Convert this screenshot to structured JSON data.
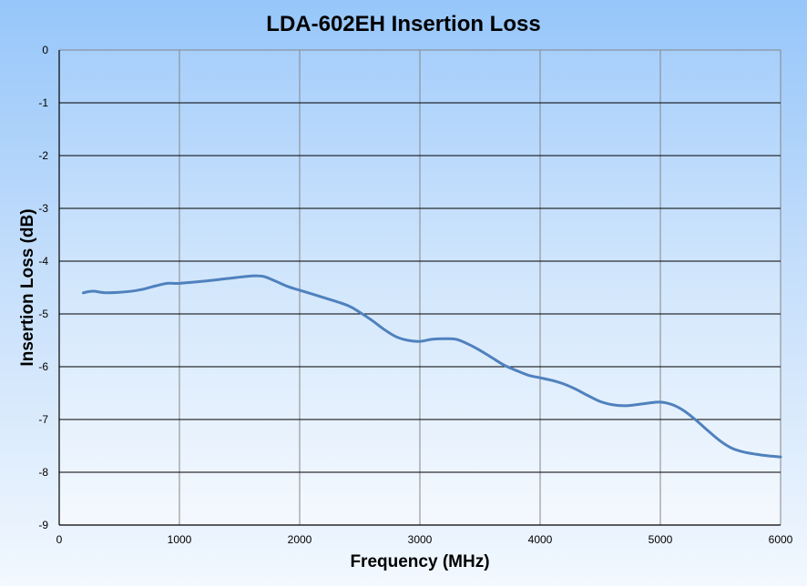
{
  "chart_data": {
    "type": "line",
    "title": "LDA-602EH Insertion Loss",
    "xlabel": "Frequency (MHz)",
    "ylabel": "Insertion Loss (dB)",
    "xlim": [
      0,
      6000
    ],
    "ylim": [
      -9,
      0
    ],
    "xticks": [
      0,
      1000,
      2000,
      3000,
      4000,
      5000,
      6000
    ],
    "yticks": [
      0,
      -1,
      -2,
      -3,
      -4,
      -5,
      -6,
      -7,
      -8,
      -9
    ],
    "grid": true,
    "legend": "none",
    "series": [
      {
        "name": "Insertion Loss",
        "color": "#4f81bd",
        "x": [
          200,
          280,
          400,
          600,
          700,
          800,
          900,
          1000,
          1200,
          1400,
          1600,
          1700,
          1800,
          1900,
          2000,
          2200,
          2400,
          2500,
          2600,
          2700,
          2800,
          2900,
          3000,
          3100,
          3200,
          3300,
          3400,
          3500,
          3600,
          3700,
          3800,
          3900,
          4000,
          4100,
          4200,
          4300,
          4400,
          4500,
          4600,
          4700,
          4800,
          4900,
          5000,
          5100,
          5200,
          5300,
          5400,
          5500,
          5600,
          5700,
          5800,
          5900,
          6000
        ],
        "y": [
          -4.6,
          -4.57,
          -4.6,
          -4.57,
          -4.53,
          -4.47,
          -4.42,
          -4.42,
          -4.38,
          -4.33,
          -4.28,
          -4.29,
          -4.38,
          -4.48,
          -4.55,
          -4.69,
          -4.84,
          -4.97,
          -5.12,
          -5.29,
          -5.43,
          -5.5,
          -5.52,
          -5.48,
          -5.47,
          -5.48,
          -5.57,
          -5.69,
          -5.83,
          -5.97,
          -6.07,
          -6.16,
          -6.21,
          -6.26,
          -6.33,
          -6.43,
          -6.55,
          -6.66,
          -6.72,
          -6.74,
          -6.72,
          -6.69,
          -6.67,
          -6.72,
          -6.84,
          -7.02,
          -7.22,
          -7.41,
          -7.55,
          -7.62,
          -7.66,
          -7.69,
          -7.71
        ]
      }
    ]
  }
}
